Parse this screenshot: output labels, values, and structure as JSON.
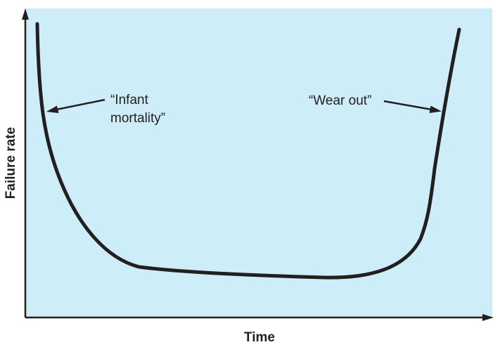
{
  "figure": {
    "type": "bathtub-curve",
    "colors": {
      "plot_background": "#cdeef8",
      "curve": "#231f20",
      "axis": "#231f20",
      "text": "#231f20"
    },
    "x_axis_label": "Time",
    "y_axis_label": "Failure rate",
    "annotations": {
      "infant_mortality": {
        "line1": "“Infant",
        "line2": "mortality”"
      },
      "wear_out": {
        "text": "“Wear out”"
      }
    }
  }
}
